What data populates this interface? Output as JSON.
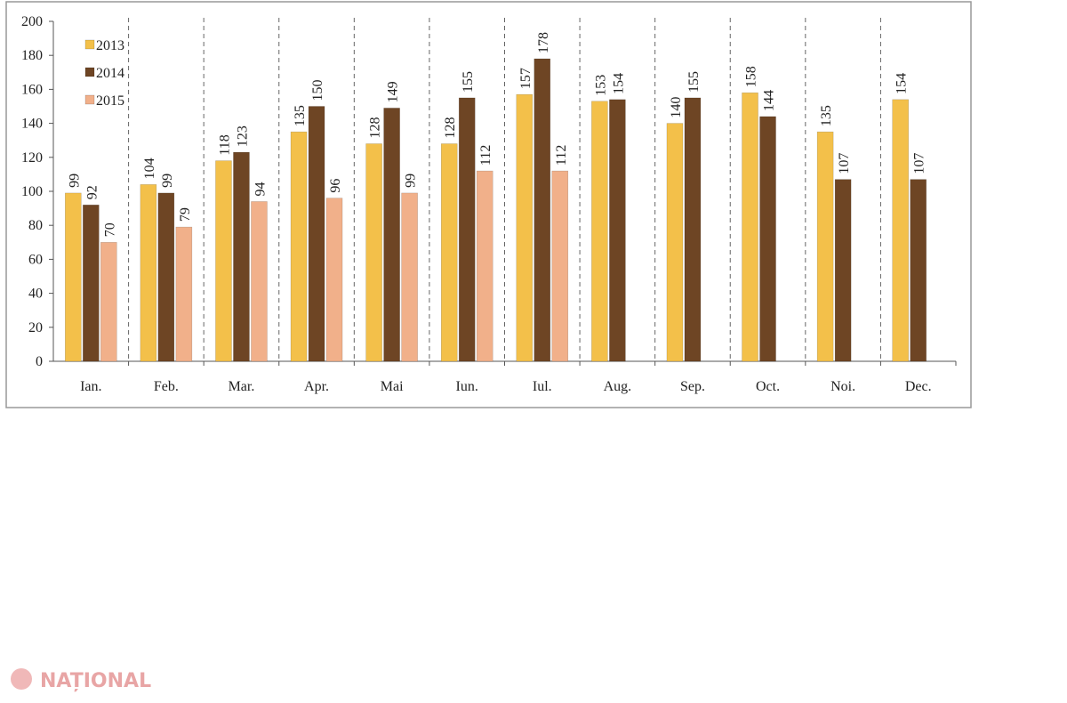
{
  "chart_data": {
    "type": "bar",
    "categories": [
      "Ian.",
      "Feb.",
      "Mar.",
      "Apr.",
      "Mai",
      "Iun.",
      "Iul.",
      "Aug.",
      "Sep.",
      "Oct.",
      "Noi.",
      "Dec."
    ],
    "series": [
      {
        "name": "2013",
        "color": "#f3c04a",
        "values": [
          99,
          104,
          118,
          135,
          128,
          128,
          157,
          153,
          140,
          158,
          135,
          154
        ]
      },
      {
        "name": "2014",
        "color": "#6e4524",
        "values": [
          92,
          99,
          123,
          150,
          149,
          155,
          178,
          154,
          155,
          144,
          107,
          107
        ]
      },
      {
        "name": "2015",
        "color": "#f1b08a",
        "values": [
          70,
          79,
          94,
          96,
          99,
          112,
          112,
          null,
          null,
          null,
          null,
          null
        ]
      }
    ],
    "ylim": [
      0,
      200
    ],
    "yticks": [
      0,
      20,
      40,
      60,
      80,
      100,
      120,
      140,
      160,
      180,
      200
    ],
    "grid": false,
    "legend": "upper-left",
    "data_labels": true
  },
  "watermark": "NAȚIONAL"
}
